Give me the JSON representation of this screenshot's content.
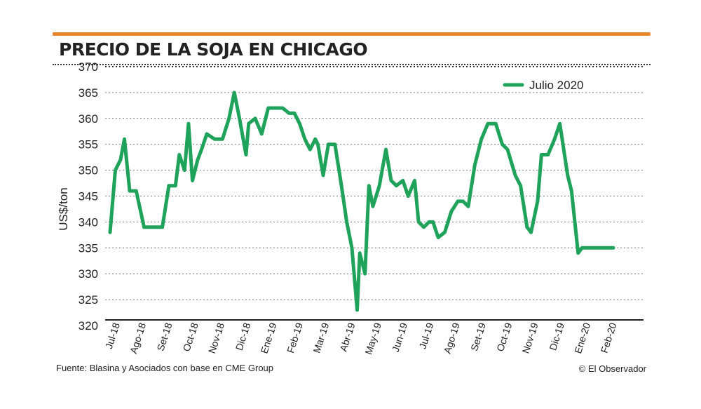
{
  "title": "PRECIO DE LA SOJA EN CHICAGO",
  "source": "Fuente: Blasina y Asociados con base en CME Group",
  "credit": "© El Observador",
  "colors": {
    "line": "#1fa25a",
    "accent": "#e8862a",
    "text": "#222222",
    "grid": "#666666"
  },
  "chart_data": {
    "type": "line",
    "title": "PRECIO DE LA SOJA EN CHICAGO",
    "xlabel": "",
    "ylabel": "US$/ton",
    "ylim": [
      320,
      370
    ],
    "yticks": [
      320,
      325,
      330,
      335,
      340,
      345,
      350,
      355,
      360,
      365,
      370
    ],
    "grid": true,
    "legend": "top-right",
    "categories": [
      "Jul-18",
      "Ago-18",
      "Set-18",
      "Oct-18",
      "Nov-18",
      "Dic-18",
      "Ene-19",
      "Feb-19",
      "Mar-19",
      "Abr-19",
      "May-19",
      "Jun-19",
      "Jul-19",
      "Ago-19",
      "Set-19",
      "Oct-19",
      "Nov-19",
      "Dic-19",
      "Ene-20",
      "Feb-20"
    ],
    "series": [
      {
        "name": "Julio 2020",
        "x": [
          0,
          0.2,
          0.4,
          0.55,
          0.75,
          1.0,
          1.3,
          1.6,
          2.0,
          2.25,
          2.5,
          2.65,
          2.85,
          3.0,
          3.15,
          3.35,
          3.5,
          3.7,
          4.0,
          4.3,
          4.55,
          4.75,
          4.95,
          5.2,
          5.3,
          5.55,
          5.8,
          6.05,
          6.25,
          6.6,
          6.85,
          7.05,
          7.25,
          7.45,
          7.65,
          7.85,
          7.95,
          8.15,
          8.35,
          8.6,
          8.85,
          9.05,
          9.25,
          9.45,
          9.55,
          9.75,
          9.9,
          10.05,
          10.3,
          10.55,
          10.75,
          10.95,
          11.2,
          11.4,
          11.65,
          11.8,
          12.0,
          12.2,
          12.35,
          12.55,
          12.8,
          13.05,
          13.3,
          13.5,
          13.7,
          13.95,
          14.2,
          14.45,
          14.75,
          15.0,
          15.2,
          15.5,
          15.7,
          15.95,
          16.1,
          16.35,
          16.5,
          16.75,
          17.0,
          17.2,
          17.5,
          17.65,
          17.9,
          18.05,
          18.35,
          18.6,
          18.85,
          19.1,
          19.25
        ],
        "values": [
          338,
          350,
          352,
          356,
          346,
          346,
          339,
          339,
          339,
          347,
          347,
          353,
          350,
          359,
          348,
          352,
          354,
          357,
          356,
          356,
          360,
          365,
          360,
          353,
          359,
          360,
          357,
          362,
          362,
          362,
          361,
          361,
          359,
          356,
          354,
          356,
          355,
          349,
          355,
          355,
          347,
          340,
          335,
          323,
          334,
          330,
          347,
          343,
          347,
          354,
          348,
          347,
          348,
          345,
          348,
          340,
          339,
          340,
          340,
          337,
          338,
          342,
          344,
          344,
          343,
          351,
          356,
          359,
          359,
          355,
          354,
          349,
          347,
          339,
          338,
          344,
          353,
          353,
          356,
          359,
          349,
          346,
          334,
          335,
          335,
          335,
          335,
          335,
          335
        ]
      }
    ]
  }
}
